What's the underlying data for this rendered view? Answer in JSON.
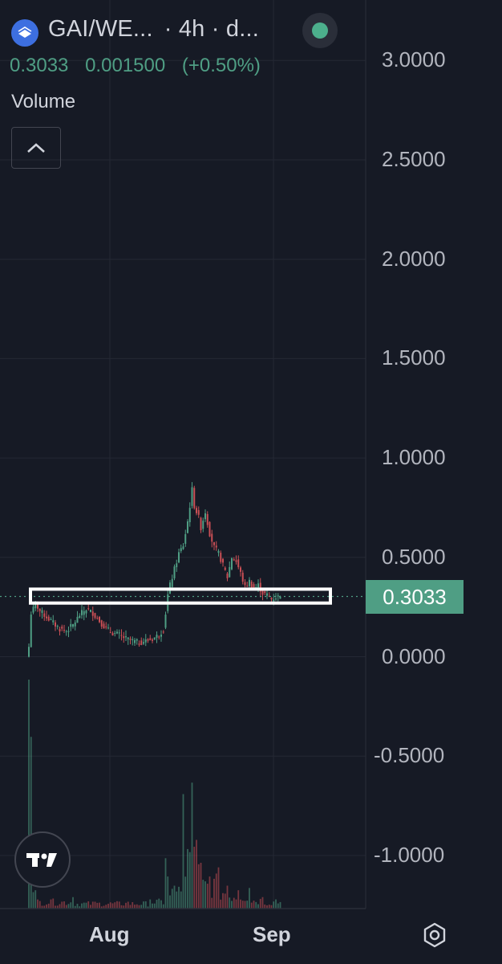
{
  "header": {
    "pair": "GAI/WE...",
    "interval": "4h",
    "source": "d...",
    "last_price": "0.3033",
    "change_abs": "0.001500",
    "change_pct": "(+0.50%)",
    "volume_label": "Volume"
  },
  "colors": {
    "background": "#161a25",
    "up": "#4f9e84",
    "down": "#c94f55",
    "grid": "#242834",
    "text": "#d1d4dc"
  },
  "icons": {
    "logo": "exchange-logo-icon",
    "live": "live-status-dot-icon",
    "collapse": "chevron-up-icon",
    "brand": "tradingview-logo-icon",
    "settings": "settings-hexagon-icon"
  },
  "chart_data": {
    "type": "candlestick",
    "y_ticks": [
      "3.0000",
      "2.5000",
      "2.0000",
      "1.5000",
      "1.0000",
      "0.5000",
      "0.0000",
      "-0.5000",
      "-1.0000"
    ],
    "x_ticks": [
      "Aug",
      "Sep"
    ],
    "ylim": [
      -1.25,
      3.2
    ],
    "last_price_label": "0.3033",
    "grid": true,
    "annotation": "horizontal rectangle around current price",
    "series": [
      {
        "x": 0,
        "y": 0.05
      },
      {
        "x": 1,
        "y": 0.22
      },
      {
        "x": 2,
        "y": 0.24
      },
      {
        "x": 3,
        "y": 0.27
      },
      {
        "x": 5,
        "y": 0.23
      },
      {
        "x": 8,
        "y": 0.2
      },
      {
        "x": 11,
        "y": 0.17
      },
      {
        "x": 14,
        "y": 0.14
      },
      {
        "x": 17,
        "y": 0.13
      },
      {
        "x": 20,
        "y": 0.16
      },
      {
        "x": 23,
        "y": 0.21
      },
      {
        "x": 26,
        "y": 0.24
      },
      {
        "x": 29,
        "y": 0.22
      },
      {
        "x": 32,
        "y": 0.18
      },
      {
        "x": 35,
        "y": 0.14
      },
      {
        "x": 38,
        "y": 0.12
      },
      {
        "x": 41,
        "y": 0.11
      },
      {
        "x": 44,
        "y": 0.09
      },
      {
        "x": 47,
        "y": 0.08
      },
      {
        "x": 50,
        "y": 0.07
      },
      {
        "x": 53,
        "y": 0.08
      },
      {
        "x": 56,
        "y": 0.09
      },
      {
        "x": 59,
        "y": 0.11
      },
      {
        "x": 61,
        "y": 0.14
      },
      {
        "x": 62,
        "y": 0.22
      },
      {
        "x": 63,
        "y": 0.31
      },
      {
        "x": 64,
        "y": 0.36
      },
      {
        "x": 66,
        "y": 0.44
      },
      {
        "x": 68,
        "y": 0.52
      },
      {
        "x": 70,
        "y": 0.56
      },
      {
        "x": 72,
        "y": 0.68
      },
      {
        "x": 74,
        "y": 0.84
      },
      {
        "x": 75,
        "y": 0.76
      },
      {
        "x": 77,
        "y": 0.7
      },
      {
        "x": 78,
        "y": 0.65
      },
      {
        "x": 80,
        "y": 0.73
      },
      {
        "x": 82,
        "y": 0.62
      },
      {
        "x": 84,
        "y": 0.55
      },
      {
        "x": 86,
        "y": 0.52
      },
      {
        "x": 88,
        "y": 0.46
      },
      {
        "x": 90,
        "y": 0.4
      },
      {
        "x": 92,
        "y": 0.5
      },
      {
        "x": 94,
        "y": 0.48
      },
      {
        "x": 96,
        "y": 0.42
      },
      {
        "x": 98,
        "y": 0.35
      },
      {
        "x": 100,
        "y": 0.38
      },
      {
        "x": 102,
        "y": 0.34
      },
      {
        "x": 104,
        "y": 0.36
      },
      {
        "x": 106,
        "y": 0.32
      },
      {
        "x": 108,
        "y": 0.31
      },
      {
        "x": 110,
        "y": 0.29
      },
      {
        "x": 112,
        "y": 0.3
      },
      {
        "x": 114,
        "y": 0.3033
      }
    ],
    "volume": [
      {
        "x": 0,
        "v": 1.0
      },
      {
        "x": 1,
        "v": 0.75
      },
      {
        "x": 3,
        "v": 0.08
      },
      {
        "x": 10,
        "v": 0.04
      },
      {
        "x": 20,
        "v": 0.05
      },
      {
        "x": 30,
        "v": 0.03
      },
      {
        "x": 45,
        "v": 0.03
      },
      {
        "x": 55,
        "v": 0.04
      },
      {
        "x": 62,
        "v": 0.22
      },
      {
        "x": 63,
        "v": 0.14
      },
      {
        "x": 66,
        "v": 0.1
      },
      {
        "x": 70,
        "v": 0.5
      },
      {
        "x": 72,
        "v": 0.26
      },
      {
        "x": 74,
        "v": 0.55
      },
      {
        "x": 76,
        "v": 0.3
      },
      {
        "x": 78,
        "v": 0.2
      },
      {
        "x": 82,
        "v": 0.14
      },
      {
        "x": 86,
        "v": 0.18
      },
      {
        "x": 90,
        "v": 0.1
      },
      {
        "x": 95,
        "v": 0.08
      },
      {
        "x": 100,
        "v": 0.09
      },
      {
        "x": 106,
        "v": 0.05
      },
      {
        "x": 112,
        "v": 0.04
      }
    ]
  }
}
